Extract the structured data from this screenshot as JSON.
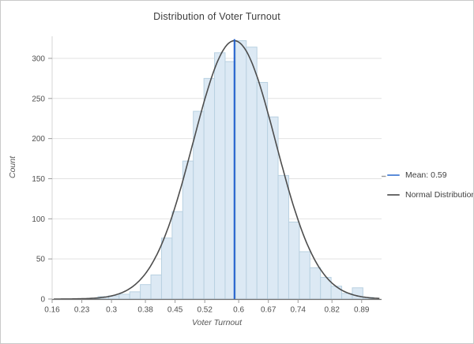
{
  "window": {
    "background": "#ffffff",
    "border_color": "#c9c9c9"
  },
  "chart_data": {
    "type": "histogram",
    "title": "Distribution of Voter Turnout",
    "xlabel": "Voter Turnout",
    "ylabel": "Count",
    "x_ticks": [
      0.16,
      0.23,
      0.3,
      0.38,
      0.45,
      0.52,
      0.6,
      0.67,
      0.74,
      0.82,
      0.89
    ],
    "x_tick_labels": [
      "0.16",
      "0.23",
      "0.3",
      "0.38",
      "0.45",
      "0.52",
      "0.6",
      "0.67",
      "0.74",
      "0.82",
      "0.89"
    ],
    "y_ticks": [
      0,
      50,
      100,
      150,
      200,
      250,
      300
    ],
    "xlim": [
      0.16,
      0.937
    ],
    "ylim": [
      0,
      327.5
    ],
    "grid": "horizontal-only",
    "legend_position": "right-outside",
    "bins": {
      "start": 0.243,
      "width": 0.025,
      "counts": [
        1,
        3,
        4,
        6,
        9,
        18,
        30,
        76,
        109,
        172,
        234,
        275,
        307,
        296,
        322,
        314,
        270,
        227,
        154,
        96,
        59,
        39,
        27,
        16,
        7,
        14,
        2
      ]
    },
    "normal_curve": {
      "name": "Normal Distribution",
      "mean": 0.59,
      "sigma": 0.0975,
      "peak": 322
    },
    "mean_line": {
      "value": 0.59,
      "top_count": 322,
      "label": "Mean: 0.59"
    },
    "legend": [
      {
        "label": "Mean: 0.59",
        "color": "#5b8cd9"
      },
      {
        "label": "Normal Distribution",
        "color": "#6b6b6b"
      }
    ],
    "colors": {
      "bar_fill": "#dce9f4",
      "bar_stroke": "#b9d1e1",
      "mean_line": "#1f5ecd",
      "curve": "#4d4d4d",
      "grid": "#e2e2e2",
      "axis_line": "#6f6f6f",
      "spine": "#d4d4d4",
      "tick": "#9a9a9a",
      "tick_label": "#4f4f4f",
      "title_text": "#3c3c3c"
    }
  }
}
